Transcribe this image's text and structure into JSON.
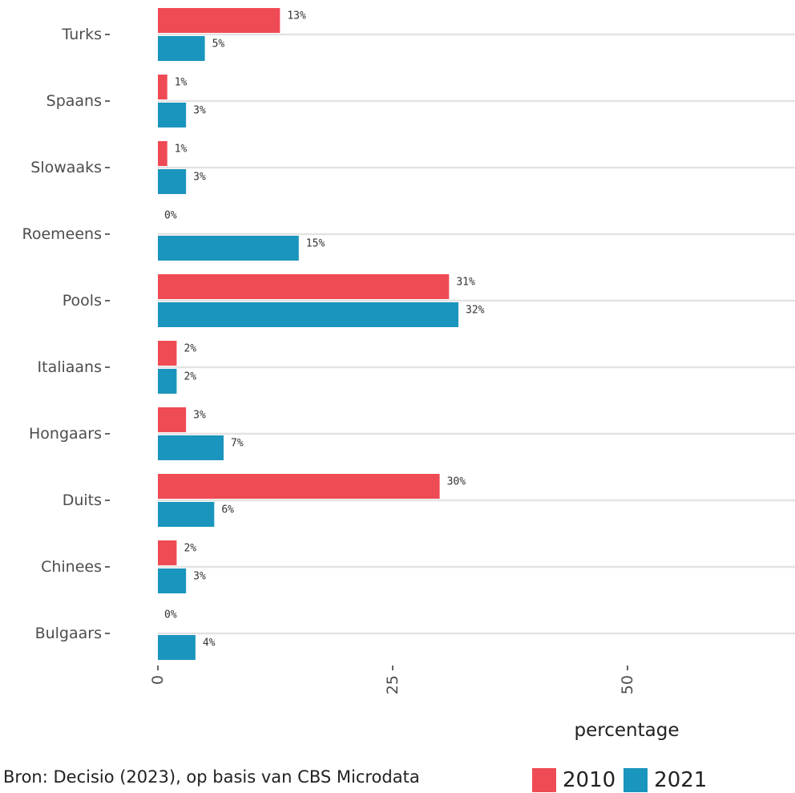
{
  "chart_data": {
    "type": "bar",
    "orientation": "horizontal",
    "categories": [
      "Turks",
      "Spaans",
      "Slowaaks",
      "Roemeens",
      "Pools",
      "Italiaans",
      "Hongaars",
      "Duits",
      "Chinees",
      "Bulgaars"
    ],
    "series": [
      {
        "name": "2010",
        "color": "#ef4b55",
        "values": [
          13,
          1,
          1,
          0,
          31,
          2,
          3,
          30,
          2,
          0
        ]
      },
      {
        "name": "2021",
        "color": "#1a95bd",
        "values": [
          5,
          3,
          3,
          15,
          32,
          2,
          7,
          6,
          3,
          4
        ]
      }
    ],
    "data_label_suffix": "%",
    "xlabel": "percentage",
    "ylabel": "",
    "xticks": [
      0,
      25,
      50
    ],
    "xlim": [
      0,
      69
    ],
    "grid": true,
    "legend_position": "bottom"
  },
  "caption": "Bron: Decisio (2023), op basis van CBS Microdata"
}
